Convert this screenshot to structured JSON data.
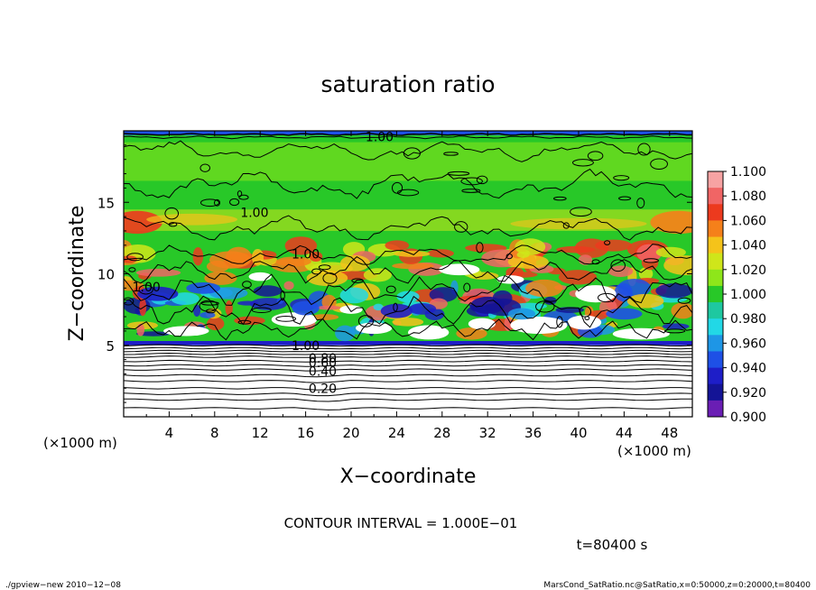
{
  "chart_data": {
    "type": "heatmap",
    "title": "saturation ratio",
    "xlabel": "X−coordinate",
    "ylabel": "Z−coordinate",
    "x_unit": "(×1000 m)",
    "y_unit": "(×1000 m)",
    "xlim": [
      0,
      50
    ],
    "ylim": [
      0,
      20
    ],
    "x_ticks": [
      4,
      8,
      12,
      16,
      20,
      24,
      28,
      32,
      36,
      40,
      44,
      48
    ],
    "y_ticks": [
      5,
      10,
      15
    ],
    "colorbar": {
      "levels": [
        "1.100",
        "1.080",
        "1.060",
        "1.040",
        "1.020",
        "1.000",
        "0.980",
        "0.960",
        "0.940",
        "0.920",
        "0.900"
      ],
      "colors": [
        "#f7a3a3",
        "#f06565",
        "#ec3a1e",
        "#f5801a",
        "#f5c31a",
        "#cfe61a",
        "#8ee61a",
        "#28c828",
        "#1ec8a0",
        "#22d8e6",
        "#1e96e6",
        "#1e50e6",
        "#1e1ec8",
        "#141496",
        "#6a1eb4"
      ]
    },
    "contour_labels": [
      {
        "text": "1.00",
        "x": 22.5,
        "z": 19.6
      },
      {
        "text": "1.00",
        "x": 11.5,
        "z": 14.3
      },
      {
        "text": "1.00",
        "x": 16,
        "z": 11.4
      },
      {
        "text": "1.00",
        "x": 2,
        "z": 9.1
      },
      {
        "text": "1.00",
        "x": 16,
        "z": 5.0
      },
      {
        "text": "0.80",
        "x": 17.5,
        "z": 4.1
      },
      {
        "text": "0.60",
        "x": 17.5,
        "z": 3.8
      },
      {
        "text": "0.40",
        "x": 17.5,
        "z": 3.2
      },
      {
        "text": "0.20",
        "x": 17.5,
        "z": 2.0
      }
    ],
    "contour_interval_text": "CONTOUR INTERVAL = 1.000E−01",
    "time_text": "t=80400 s"
  },
  "footer": {
    "left": "./gpview−new   2010−12−08",
    "right": "MarsCond_SatRatio.nc@SatRatio,x=0:50000,z=0:20000,t=80400"
  }
}
